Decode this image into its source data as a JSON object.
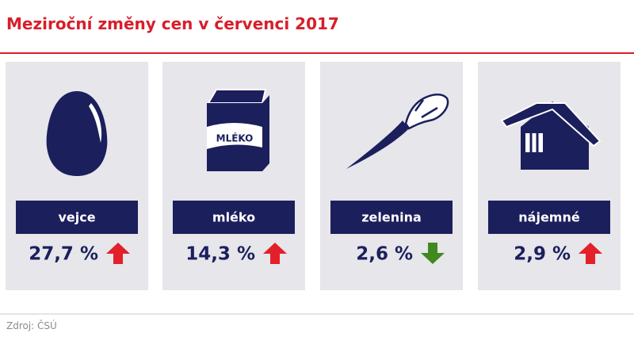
{
  "header": {
    "title": "Meziroční změny cen v červenci 2017"
  },
  "cards": [
    {
      "icon": "egg",
      "label": "vejce",
      "value": "27,7 %",
      "trend": "up"
    },
    {
      "icon": "milk",
      "icon_text": "MLÉKO",
      "label": "mléko",
      "value": "14,3 %",
      "trend": "up"
    },
    {
      "icon": "carrot",
      "label": "zelenina",
      "value": "2,6 %",
      "trend": "down"
    },
    {
      "icon": "house",
      "label": "nájemné",
      "value": "2,9 %",
      "trend": "up"
    }
  ],
  "footer": {
    "source": "Zdroj: ČSÚ"
  }
}
